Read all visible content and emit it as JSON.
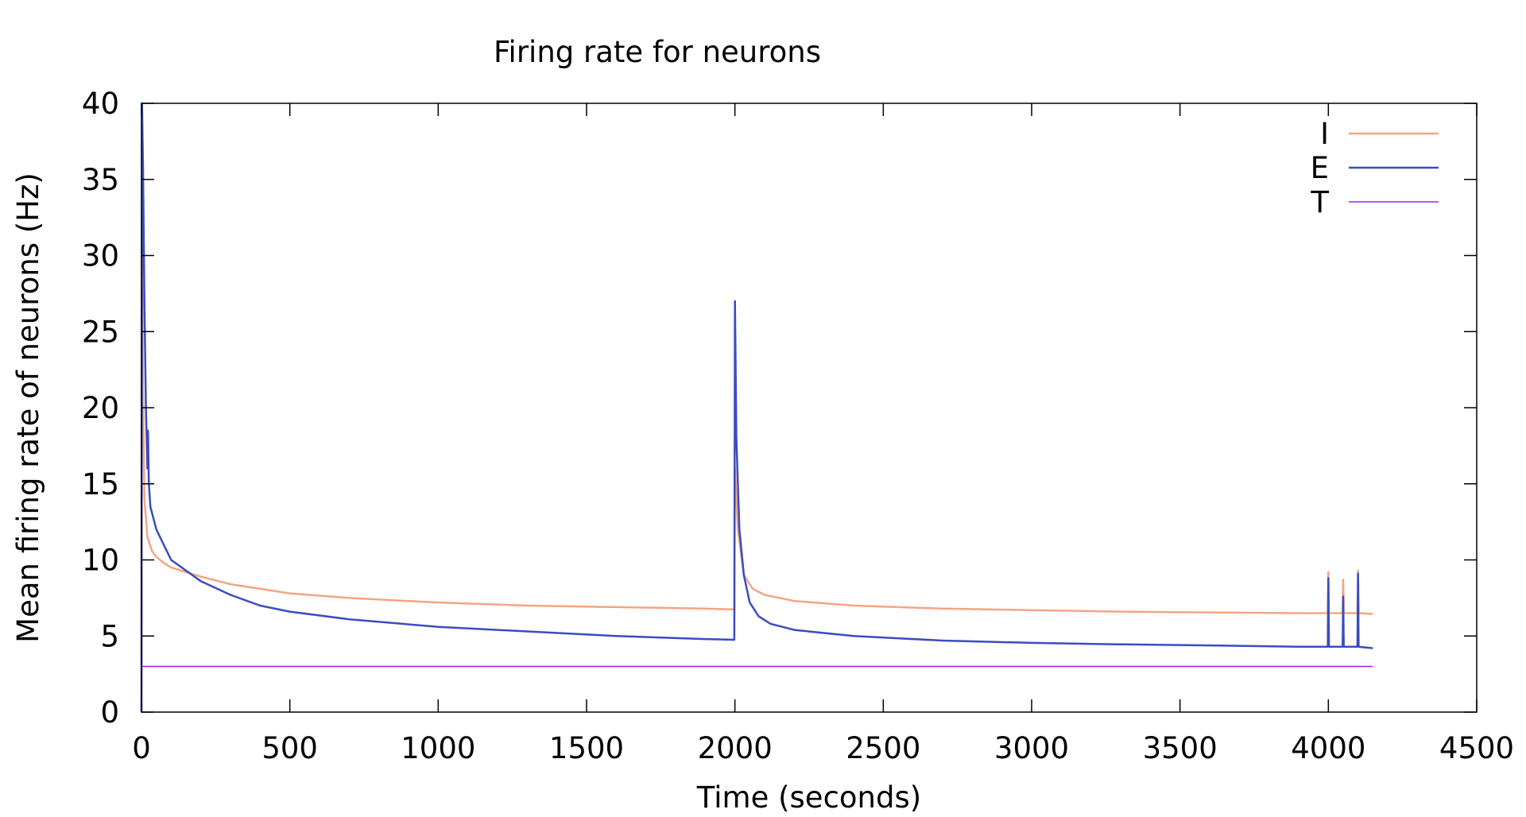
{
  "chart_data": {
    "type": "line",
    "title": "Firing rate for neurons",
    "xlabel": "Time (seconds)",
    "ylabel": "Mean firing rate of neurons (Hz)",
    "xlim": [
      0,
      4500
    ],
    "ylim": [
      0,
      40
    ],
    "xticks": [
      0,
      500,
      1000,
      1500,
      2000,
      2500,
      3000,
      3500,
      4000,
      4500
    ],
    "yticks": [
      0,
      5,
      10,
      15,
      20,
      25,
      30,
      35,
      40
    ],
    "grid": false,
    "legend_position": "top-right",
    "series": [
      {
        "name": "I",
        "color": "#f4a582",
        "x": [
          0,
          2,
          5,
          10,
          20,
          35,
          50,
          75,
          100,
          150,
          200,
          300,
          400,
          500,
          700,
          1000,
          1300,
          1600,
          1900,
          1995,
          1998,
          2000,
          2010,
          2030,
          2060,
          2100,
          2200,
          2400,
          2700,
          3000,
          3300,
          3600,
          3900,
          3998,
          4000,
          4002,
          4048,
          4050,
          4052,
          4098,
          4100,
          4102,
          4150
        ],
        "y": [
          8.5,
          33,
          21,
          14,
          11.5,
          10.6,
          10.2,
          9.8,
          9.5,
          9.2,
          8.9,
          8.4,
          8.1,
          7.8,
          7.5,
          7.2,
          7.0,
          6.9,
          6.8,
          6.75,
          6.75,
          16,
          12,
          9.0,
          8.1,
          7.7,
          7.3,
          7.0,
          6.8,
          6.7,
          6.6,
          6.55,
          6.5,
          6.5,
          9.2,
          6.5,
          6.5,
          8.7,
          6.5,
          6.5,
          9.3,
          6.5,
          6.45
        ]
      },
      {
        "name": "E",
        "color": "#3b4cc0",
        "x": [
          0,
          2,
          5,
          10,
          15,
          20,
          22,
          25,
          30,
          50,
          75,
          100,
          150,
          200,
          300,
          400,
          500,
          700,
          1000,
          1300,
          1600,
          1900,
          1998,
          2000,
          2005,
          2015,
          2030,
          2050,
          2080,
          2120,
          2200,
          2400,
          2700,
          3000,
          3300,
          3600,
          3900,
          3998,
          4000,
          4002,
          4048,
          4050,
          4052,
          4098,
          4100,
          4102,
          4150
        ],
        "y": [
          0,
          40,
          36,
          27,
          20,
          16,
          18.5,
          15,
          13.5,
          12.0,
          11.0,
          10.0,
          9.3,
          8.6,
          7.7,
          7.0,
          6.6,
          6.1,
          5.6,
          5.3,
          5.0,
          4.8,
          4.75,
          27,
          18,
          12,
          9.0,
          7.2,
          6.3,
          5.8,
          5.4,
          5.0,
          4.7,
          4.55,
          4.45,
          4.38,
          4.3,
          4.3,
          8.8,
          4.3,
          4.3,
          7.6,
          4.3,
          4.3,
          9.1,
          4.3,
          4.2
        ]
      },
      {
        "name": "T",
        "color": "#a020f0",
        "x": [
          0,
          4150
        ],
        "y": [
          3,
          3
        ]
      }
    ]
  }
}
